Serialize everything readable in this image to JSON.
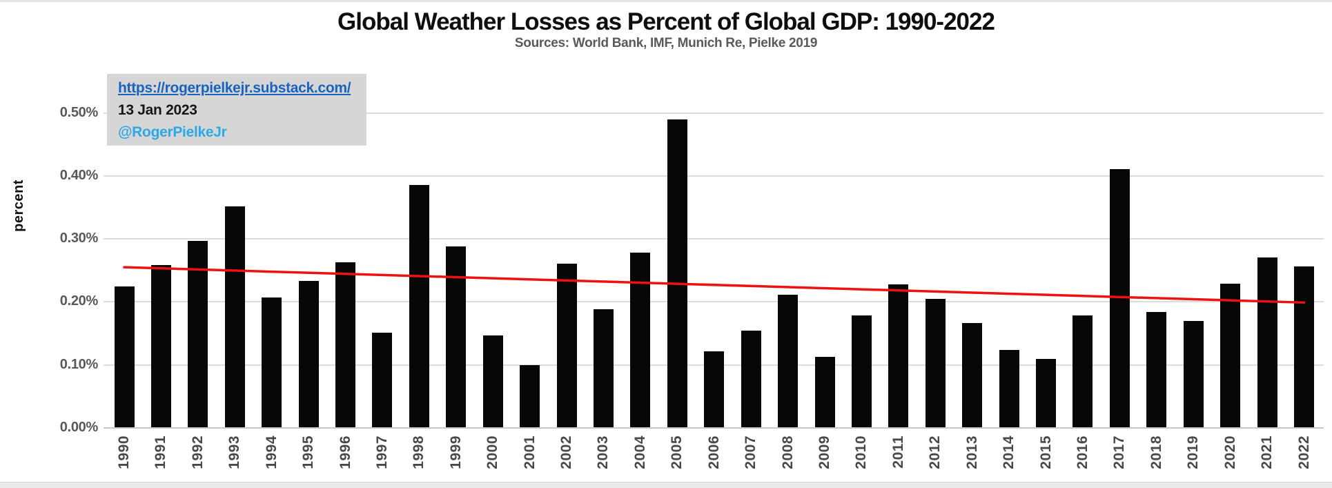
{
  "info_box": {
    "url_text": "https://rogerpielkejr.substack.com/",
    "date": "13 Jan 2023",
    "handle": "@RogerPielkeJr",
    "background": "#d6d6d6",
    "url_color": "#1963c0",
    "date_color": "#161616",
    "handle_color": "#2ba9e6"
  },
  "chart_data": {
    "type": "bar",
    "title": "Global Weather Losses as Percent of Global GDP: 1990-2022",
    "subtitle": "Sources: World Bank, IMF, Munich Re, Pielke 2019",
    "xlabel": "",
    "ylabel": "percent",
    "categories": [
      "1990",
      "1991",
      "1992",
      "1993",
      "1994",
      "1995",
      "1996",
      "1997",
      "1998",
      "1999",
      "2000",
      "2001",
      "2002",
      "2003",
      "2004",
      "2005",
      "2006",
      "2007",
      "2008",
      "2009",
      "2010",
      "2011",
      "2012",
      "2013",
      "2014",
      "2015",
      "2016",
      "2017",
      "2018",
      "2019",
      "2020",
      "2021",
      "2022"
    ],
    "values": [
      0.225,
      0.258,
      0.297,
      0.352,
      0.207,
      0.233,
      0.263,
      0.151,
      0.385,
      0.288,
      0.147,
      0.1,
      0.261,
      0.188,
      0.278,
      0.49,
      0.122,
      0.154,
      0.211,
      0.113,
      0.179,
      0.228,
      0.205,
      0.166,
      0.124,
      0.109,
      0.179,
      0.411,
      0.184,
      0.17,
      0.229,
      0.271,
      0.256
    ],
    "ylim": [
      0,
      0.5
    ],
    "yticks": [
      0,
      0.1,
      0.2,
      0.3,
      0.4,
      0.5
    ],
    "ytick_labels": [
      "0.00%",
      "0.10%",
      "0.20%",
      "0.30%",
      "0.40%",
      "0.50%"
    ],
    "grid": true,
    "legend": "none",
    "bar_color": "#070707",
    "gridline_color": "#dcdcdc",
    "axis_line_color": "#c8c8c8",
    "ytick_label_color": "#595959",
    "xtick_label_color": "#484848",
    "title_color": "#0e0e0e",
    "subtitle_color": "#595959",
    "trendline": {
      "type": "linear",
      "start_value": 0.255,
      "end_value": 0.199,
      "color": "#ed1111"
    }
  }
}
